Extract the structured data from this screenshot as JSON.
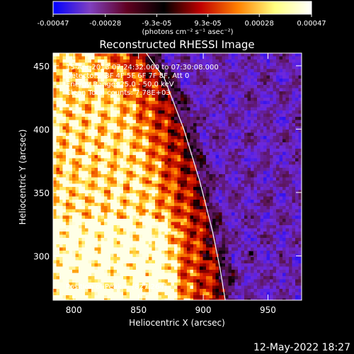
{
  "chart_data": {
    "type": "heatmap",
    "title": "Reconstructed RHESSI Image",
    "xlabel": "Heliocentric X (arcsec)",
    "ylabel": "Heliocentric Y (arcsec)",
    "xlim": [
      784,
      976
    ],
    "ylim": [
      265,
      460
    ],
    "xticks": [
      800,
      850,
      900,
      950
    ],
    "xtick_labels": [
      "800",
      "850",
      "900",
      "950"
    ],
    "yticks": [
      300,
      350,
      400,
      450
    ],
    "ytick_labels": [
      "300",
      "350",
      "400",
      "450"
    ],
    "colorbar": {
      "range": [
        -0.00047,
        0.00047
      ],
      "tick_values": [
        -0.00047,
        -0.00028,
        -9.3e-05,
        9.3e-05,
        0.00028,
        0.00047
      ],
      "tick_labels": [
        "-0.00047",
        "-0.00028",
        "-9.3e-05",
        "9.3e-05",
        "0.00028",
        "0.00047"
      ],
      "units_label": "(photons cm⁻² s⁻¹ asec⁻²)",
      "colors": [
        "#0000ff",
        "#8040c0",
        "#600020",
        "#000000",
        "#c00000",
        "#ff8000",
        "#ffff80",
        "#ffffff"
      ]
    },
    "info_lines": [
      "15-Apr-2013 07:24:32.000 to 07:30:08.000",
      "Detectors: 3F 4F 5F 6F 7F 8F, Att 0",
      "Energy Range: 25.0 - 50.0 keV",
      "Clean      Total counts: 7.78E+03"
    ],
    "peak_label": "Position of Peak = [827,264]",
    "peak": {
      "x": 827,
      "y": 264
    },
    "limb_curve": [
      [
        856,
        460
      ],
      [
        870,
        440
      ],
      [
        885,
        400
      ],
      [
        897,
        360
      ],
      [
        907,
        320
      ],
      [
        913,
        290
      ],
      [
        917,
        265
      ]
    ],
    "marker": {
      "x": 937,
      "y": 302
    },
    "grid": false
  },
  "footer": {
    "date": "12-May-2022 18:27"
  }
}
